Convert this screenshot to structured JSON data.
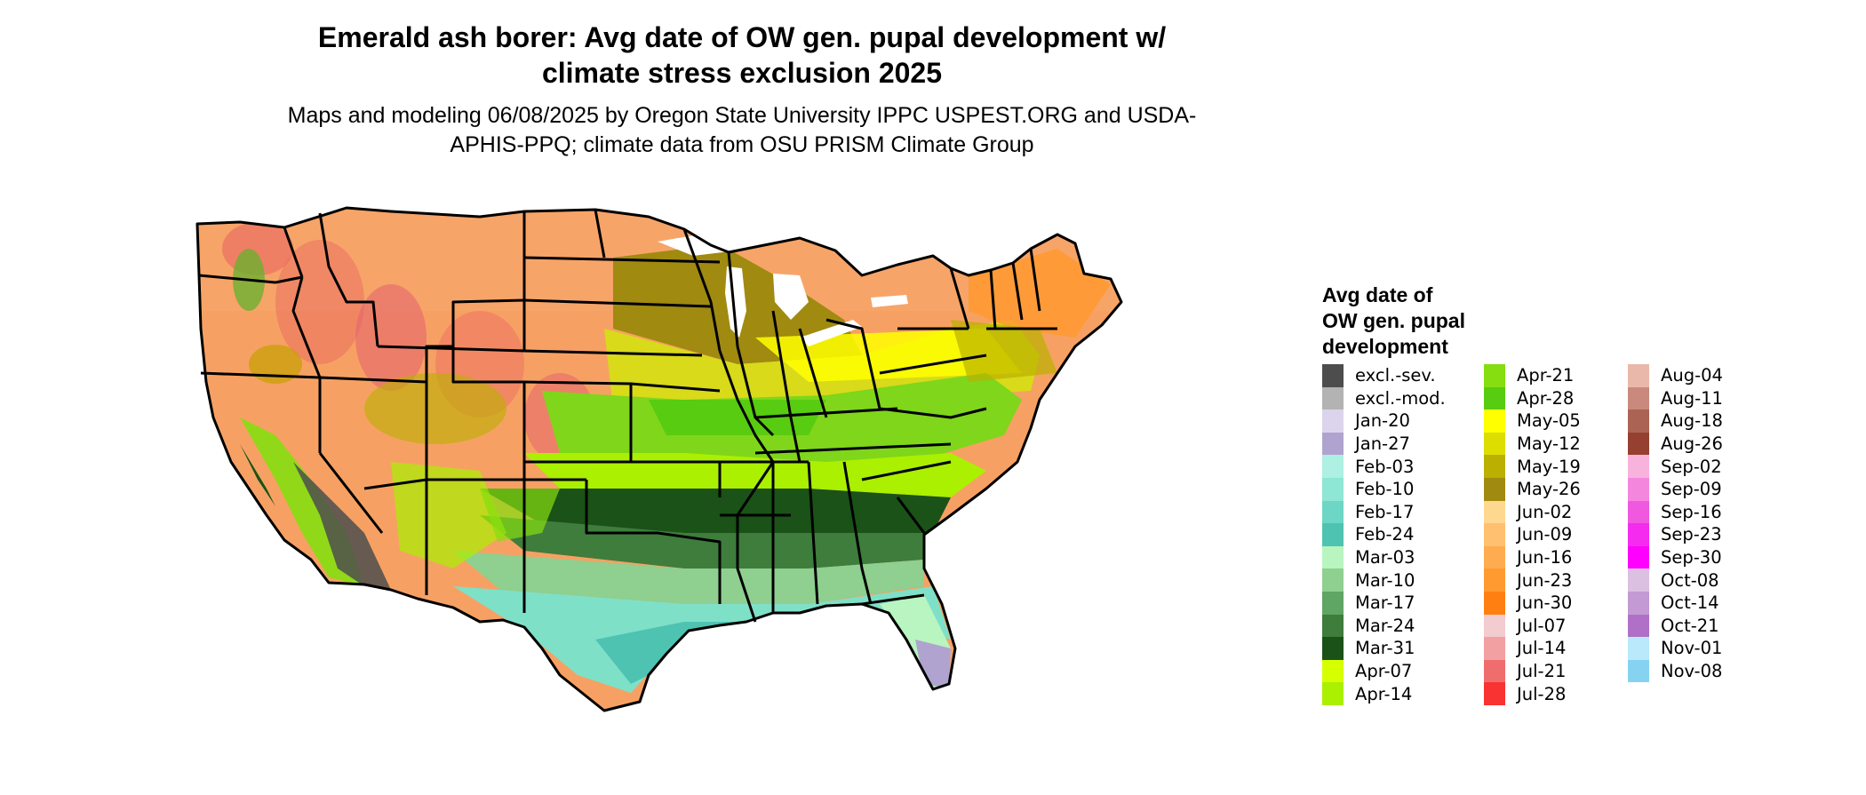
{
  "title": "Emerald ash borer: Avg date of OW gen. pupal development w/ climate stress exclusion 2025",
  "subtitle": "Maps and modeling 06/08/2025 by Oregon State University IPPC USPEST.ORG and USDA-APHIS-PPQ; climate data from OSU PRISM Climate Group",
  "legend": {
    "title": "Avg date of\nOW gen. pupal\ndevelopment",
    "columns": [
      [
        {
          "label": "excl.-sev.",
          "color": "#4d4d4d"
        },
        {
          "label": "excl.-mod.",
          "color": "#b3b3b3"
        },
        {
          "label": "Jan-20",
          "color": "#dcd4ec"
        },
        {
          "label": "Jan-27",
          "color": "#b0a3cf"
        },
        {
          "label": "Feb-03",
          "color": "#aef0e2"
        },
        {
          "label": "Feb-10",
          "color": "#8ee6d4"
        },
        {
          "label": "Feb-17",
          "color": "#6dd6c4"
        },
        {
          "label": "Feb-24",
          "color": "#4fc3b1"
        },
        {
          "label": "Mar-03",
          "color": "#b8f5c0"
        },
        {
          "label": "Mar-10",
          "color": "#8fcf8f"
        },
        {
          "label": "Mar-17",
          "color": "#5fa563"
        },
        {
          "label": "Mar-24",
          "color": "#3e7d3c"
        },
        {
          "label": "Mar-31",
          "color": "#1a5218"
        },
        {
          "label": "Apr-07",
          "color": "#d6ff00"
        },
        {
          "label": "Apr-14",
          "color": "#aaf000"
        }
      ],
      [
        {
          "label": "Apr-21",
          "color": "#86de10"
        },
        {
          "label": "Apr-28",
          "color": "#58cc10"
        },
        {
          "label": "May-05",
          "color": "#ffff00"
        },
        {
          "label": "May-12",
          "color": "#dddd00"
        },
        {
          "label": "May-19",
          "color": "#bbb000"
        },
        {
          "label": "May-26",
          "color": "#a08a10"
        },
        {
          "label": "Jun-02",
          "color": "#ffd890"
        },
        {
          "label": "Jun-09",
          "color": "#ffc070"
        },
        {
          "label": "Jun-16",
          "color": "#ffac50"
        },
        {
          "label": "Jun-23",
          "color": "#ff9a30"
        },
        {
          "label": "Jun-30",
          "color": "#ff8010"
        },
        {
          "label": "Jul-07",
          "color": "#f3ccd0"
        },
        {
          "label": "Jul-14",
          "color": "#f3a0a2"
        },
        {
          "label": "Jul-21",
          "color": "#f06d6d"
        },
        {
          "label": "Jul-28",
          "color": "#f93232"
        }
      ],
      [
        {
          "label": "Aug-04",
          "color": "#e9b8aa"
        },
        {
          "label": "Aug-11",
          "color": "#c98a7d"
        },
        {
          "label": "Aug-18",
          "color": "#ab6454"
        },
        {
          "label": "Aug-26",
          "color": "#954030"
        },
        {
          "label": "Sep-02",
          "color": "#f7b3dc"
        },
        {
          "label": "Sep-09",
          "color": "#f586dd"
        },
        {
          "label": "Sep-16",
          "color": "#f058e0"
        },
        {
          "label": "Sep-23",
          "color": "#f52bf0"
        },
        {
          "label": "Sep-30",
          "color": "#ff00ff"
        },
        {
          "label": "Oct-08",
          "color": "#dbc0e2"
        },
        {
          "label": "Oct-14",
          "color": "#c39ad3"
        },
        {
          "label": "Oct-21",
          "color": "#b070c8"
        },
        {
          "label": "Nov-01",
          "color": "#b9e9fb"
        },
        {
          "label": "Nov-08",
          "color": "#86d3f1"
        }
      ]
    ]
  },
  "map_colors": {
    "border": "#000000",
    "north_low": "#f6a163",
    "mountain": "#eb6f63",
    "plains": "#b0a400",
    "corn_belt": "#d8da1a",
    "mid_band": "#7fd61a",
    "south": "#4f9a4c",
    "gulf": "#7fe0c8",
    "florida": "#b0a3cf",
    "desert": "#4d4d4d"
  }
}
